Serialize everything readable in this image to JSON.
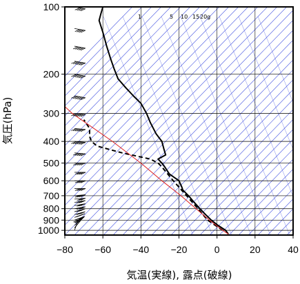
{
  "chart_data": {
    "type": "line",
    "title": "",
    "xlabel": "気温(実線), 露点(破線)",
    "ylabel": "気圧(hPa)",
    "xlim": [
      -80,
      40
    ],
    "ylim": [
      1050,
      100
    ],
    "y_scale": "log",
    "grid": true,
    "x_ticks": [
      -80,
      -60,
      -40,
      -20,
      0,
      20,
      40
    ],
    "x_tick_labels": [
      "−80",
      "−60",
      "−40",
      "−20",
      "0",
      "20",
      "40"
    ],
    "y_ticks": [
      100,
      200,
      300,
      400,
      500,
      600,
      700,
      800,
      900,
      1000
    ],
    "y_tick_labels": [
      "100",
      "200",
      "300",
      "400",
      "500",
      "600",
      "700",
      "800",
      "900",
      "1000"
    ],
    "mixing_ratio_labels": [
      "1",
      "5",
      "10",
      "15",
      "20g"
    ],
    "colors": {
      "temperature": "#000000",
      "dewpoint": "#000000",
      "parcel": "#e02020",
      "dry_adiabats": "#4050e0",
      "mixing_ratio": "#a0a0a0",
      "grid": "#000000"
    },
    "series": [
      {
        "key": "temperature",
        "style": "solid",
        "points": [
          {
            "p": 1040,
            "t": 6
          },
          {
            "p": 1000,
            "t": 4.5
          },
          {
            "p": 950,
            "t": 0.5
          },
          {
            "p": 900,
            "t": -3
          },
          {
            "p": 850,
            "t": -6
          },
          {
            "p": 800,
            "t": -9
          },
          {
            "p": 750,
            "t": -12
          },
          {
            "p": 700,
            "t": -15
          },
          {
            "p": 660,
            "t": -18
          },
          {
            "p": 640,
            "t": -18.5
          },
          {
            "p": 600,
            "t": -20
          },
          {
            "p": 560,
            "t": -25
          },
          {
            "p": 520,
            "t": -27.5
          },
          {
            "p": 500,
            "t": -29
          },
          {
            "p": 480,
            "t": -31
          },
          {
            "p": 460,
            "t": -27
          },
          {
            "p": 430,
            "t": -28
          },
          {
            "p": 400,
            "t": -29
          },
          {
            "p": 370,
            "t": -32
          },
          {
            "p": 330,
            "t": -35
          },
          {
            "p": 300,
            "t": -37
          },
          {
            "p": 270,
            "t": -40
          },
          {
            "p": 250,
            "t": -44
          },
          {
            "p": 230,
            "t": -48
          },
          {
            "p": 210,
            "t": -52
          },
          {
            "p": 190,
            "t": -54
          },
          {
            "p": 170,
            "t": -56
          },
          {
            "p": 150,
            "t": -58
          },
          {
            "p": 130,
            "t": -60
          },
          {
            "p": 115,
            "t": -62
          },
          {
            "p": 107,
            "t": -61
          },
          {
            "p": 100,
            "t": -60
          }
        ]
      },
      {
        "key": "dewpoint",
        "style": "dashed",
        "points": [
          {
            "p": 1000,
            "t": 3
          },
          {
            "p": 900,
            "t": -5
          },
          {
            "p": 800,
            "t": -10
          },
          {
            "p": 700,
            "t": -16
          },
          {
            "p": 600,
            "t": -23
          },
          {
            "p": 520,
            "t": -29
          },
          {
            "p": 500,
            "t": -31
          },
          {
            "p": 480,
            "t": -35
          },
          {
            "p": 450,
            "t": -50
          },
          {
            "p": 420,
            "t": -63
          },
          {
            "p": 400,
            "t": -66
          },
          {
            "p": 380,
            "t": -67
          },
          {
            "p": 350,
            "t": -67
          },
          {
            "p": 320,
            "t": -70
          }
        ]
      },
      {
        "key": "parcel",
        "style": "solid",
        "points": [
          {
            "p": 1040,
            "t": 6
          },
          {
            "p": 1000,
            "t": 3
          },
          {
            "p": 900,
            "t": -4
          },
          {
            "p": 800,
            "t": -11
          },
          {
            "p": 700,
            "t": -19
          },
          {
            "p": 600,
            "t": -29
          },
          {
            "p": 500,
            "t": -40
          },
          {
            "p": 400,
            "t": -55
          },
          {
            "p": 300,
            "t": -76
          },
          {
            "p": 260,
            "t": -84
          }
        ]
      }
    ],
    "wind_barbs": [
      {
        "p": 1000,
        "dir": 200,
        "spd": 10
      },
      {
        "p": 975,
        "dir": 220,
        "spd": 15
      },
      {
        "p": 950,
        "dir": 230,
        "spd": 20
      },
      {
        "p": 925,
        "dir": 240,
        "spd": 20
      },
      {
        "p": 900,
        "dir": 250,
        "spd": 25
      },
      {
        "p": 875,
        "dir": 250,
        "spd": 25
      },
      {
        "p": 850,
        "dir": 255,
        "spd": 25
      },
      {
        "p": 825,
        "dir": 255,
        "spd": 25
      },
      {
        "p": 800,
        "dir": 260,
        "spd": 30
      },
      {
        "p": 775,
        "dir": 260,
        "spd": 30
      },
      {
        "p": 750,
        "dir": 260,
        "spd": 30
      },
      {
        "p": 725,
        "dir": 265,
        "spd": 30
      },
      {
        "p": 700,
        "dir": 265,
        "spd": 35
      },
      {
        "p": 650,
        "dir": 270,
        "spd": 35
      },
      {
        "p": 600,
        "dir": 270,
        "spd": 40
      },
      {
        "p": 550,
        "dir": 270,
        "spd": 40
      },
      {
        "p": 500,
        "dir": 270,
        "spd": 45
      },
      {
        "p": 450,
        "dir": 275,
        "spd": 50
      },
      {
        "p": 400,
        "dir": 275,
        "spd": 55
      },
      {
        "p": 350,
        "dir": 275,
        "spd": 60
      },
      {
        "p": 300,
        "dir": 275,
        "spd": 70
      },
      {
        "p": 250,
        "dir": 280,
        "spd": 80
      },
      {
        "p": 200,
        "dir": 280,
        "spd": 70
      },
      {
        "p": 175,
        "dir": 280,
        "spd": 60
      },
      {
        "p": 150,
        "dir": 280,
        "spd": 50
      },
      {
        "p": 125,
        "dir": 280,
        "spd": 40
      },
      {
        "p": 100,
        "dir": 280,
        "spd": 35
      }
    ]
  }
}
